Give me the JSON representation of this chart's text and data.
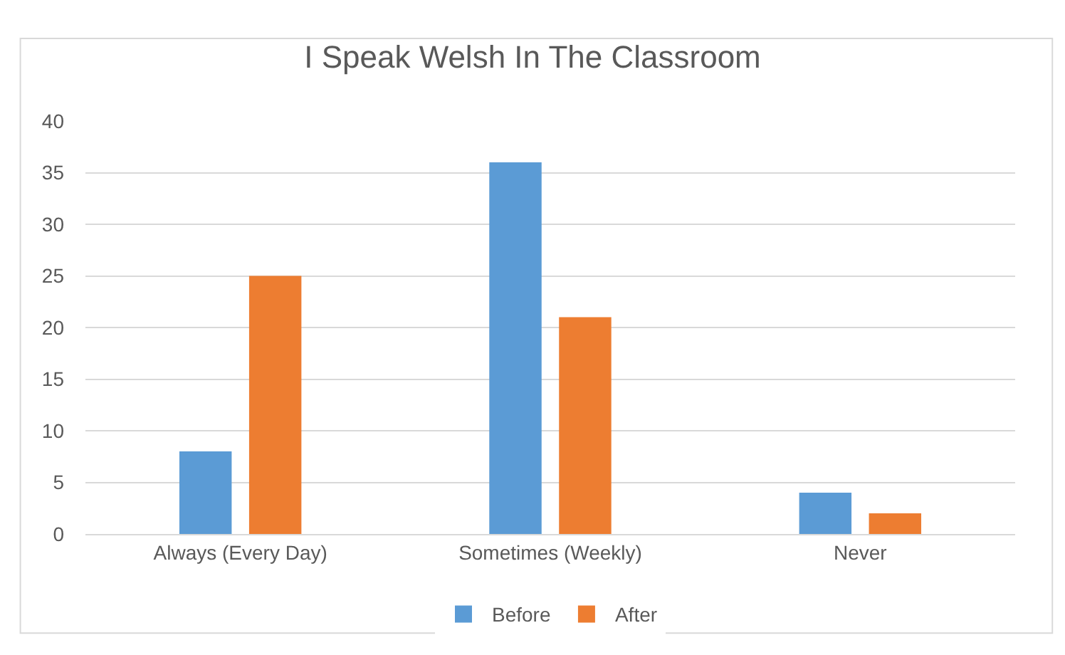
{
  "chart_data": {
    "type": "bar",
    "title": "I Speak Welsh In The Classroom",
    "categories": [
      "Always (Every Day)",
      "Sometimes (Weekly)",
      "Never"
    ],
    "series": [
      {
        "name": "Before",
        "color": "#5b9bd5",
        "values": [
          8,
          36,
          4
        ]
      },
      {
        "name": "After",
        "color": "#ed7d31",
        "values": [
          25,
          21,
          2
        ]
      }
    ],
    "ylim": [
      0,
      40
    ],
    "yticks": [
      0,
      5,
      10,
      15,
      20,
      25,
      30,
      35,
      40
    ],
    "grid": "y",
    "legend": "bottom"
  }
}
